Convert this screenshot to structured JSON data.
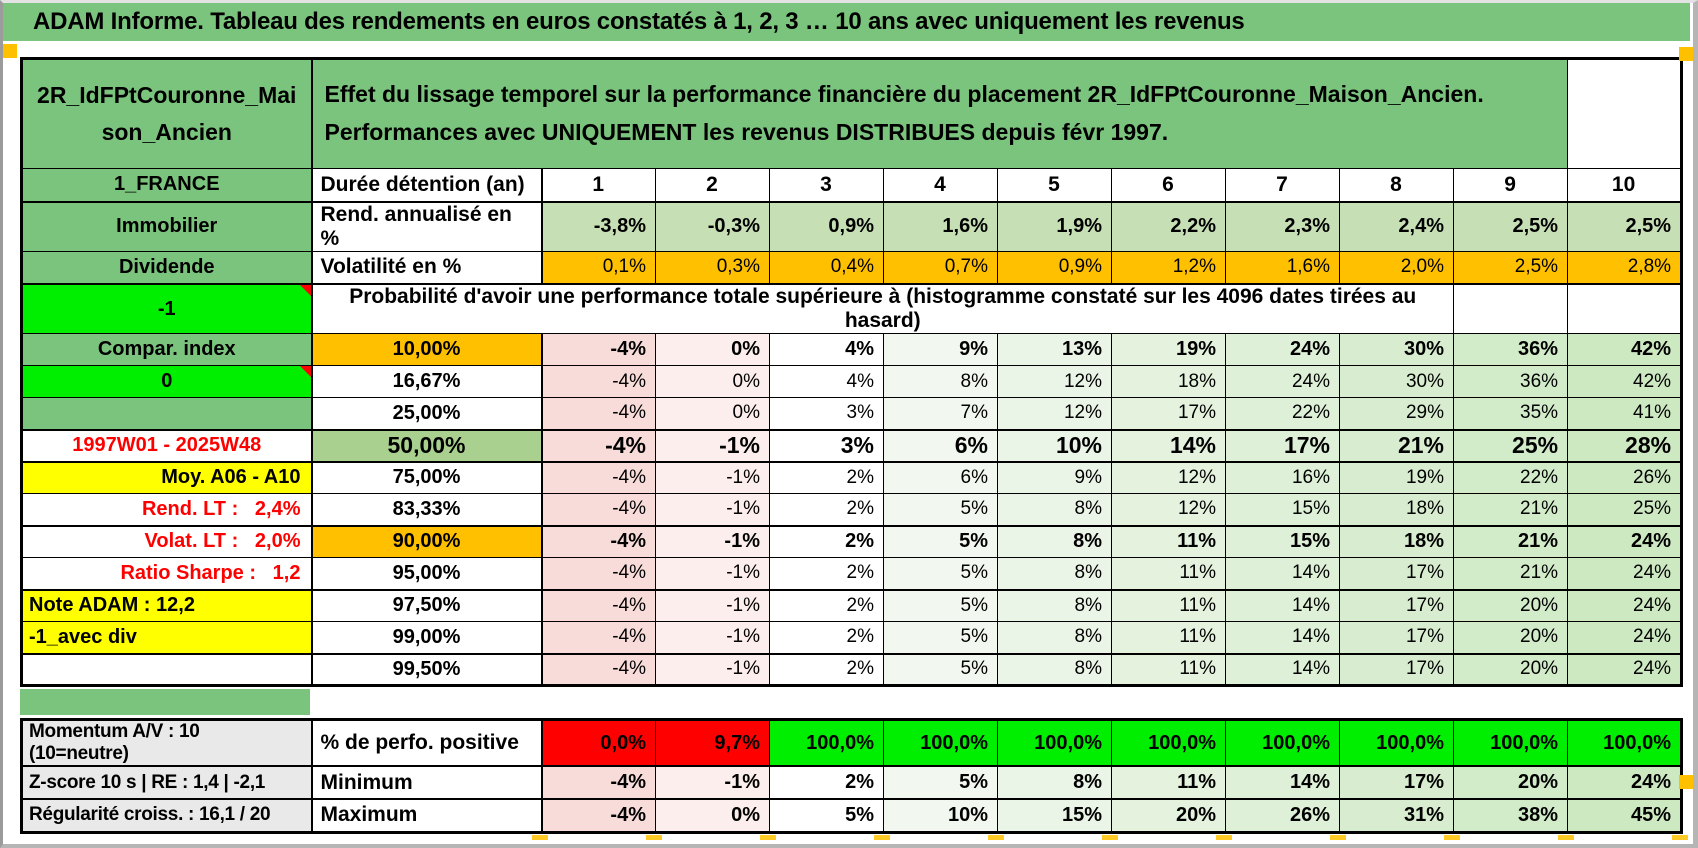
{
  "title": "ADAM Informe. Tableau des rendements en euros constatés à 1, 2, 3 … 10 ans avec uniquement les revenus",
  "colors": {
    "green": "#7BC47D",
    "light_green": "#C6DFB4",
    "mid_green": "#A9D08E",
    "bright_green": "#00EE00",
    "orange": "#FFC000",
    "yellow": "#FFFF00",
    "red": "#FF0000",
    "gray": "#E9E9E9"
  },
  "header": {
    "asset_id": "2R_IdFPtCouronne_Maison_Ancien",
    "description": "Effet du lissage temporel sur la performance financière du placement 2R_IdFPtCouronne_Maison_Ancien. Performances avec UNIQUEMENT les revenus DISTRIBUES depuis févr 1997."
  },
  "duration_row": {
    "label": "1_FRANCE",
    "metric": "Durée détention (an)",
    "values": [
      "1",
      "2",
      "3",
      "4",
      "5",
      "6",
      "7",
      "8",
      "9",
      "10"
    ]
  },
  "return_row": {
    "label": "Immobilier",
    "metric": "Rend. annualisé en %",
    "values": [
      "-3,8%",
      "-0,3%",
      "0,9%",
      "1,6%",
      "1,9%",
      "2,2%",
      "2,3%",
      "2,4%",
      "2,5%",
      "2,5%"
    ]
  },
  "volatility_row": {
    "label": "Dividende",
    "metric": "Volatilité en %",
    "values": [
      "0,1%",
      "0,3%",
      "0,4%",
      "0,7%",
      "0,9%",
      "1,2%",
      "1,6%",
      "2,0%",
      "2,5%",
      "2,8%"
    ]
  },
  "probability_header": {
    "label": "-1",
    "text": "Probabilité d'avoir une performance totale supérieure à (histogramme constaté sur les 4096 dates tirées au hasard)"
  },
  "probability_rows": [
    {
      "label": "Compar. index",
      "label_style": "green",
      "marker": false,
      "threshold": "10,00%",
      "threshold_style": "orange",
      "bold": true,
      "big": false,
      "values": [
        "-4%",
        "0%",
        "4%",
        "9%",
        "13%",
        "19%",
        "24%",
        "30%",
        "36%",
        "42%"
      ]
    },
    {
      "label": "0",
      "label_style": "bright-green",
      "marker": true,
      "threshold": "16,67%",
      "threshold_style": "white",
      "bold": false,
      "big": false,
      "values": [
        "-4%",
        "0%",
        "4%",
        "8%",
        "12%",
        "18%",
        "24%",
        "30%",
        "36%",
        "42%"
      ]
    },
    {
      "label": "",
      "label_style": "green",
      "marker": false,
      "threshold": "25,00%",
      "threshold_style": "white",
      "bold": false,
      "big": false,
      "values": [
        "-4%",
        "0%",
        "3%",
        "7%",
        "12%",
        "17%",
        "22%",
        "29%",
        "35%",
        "41%"
      ]
    },
    {
      "label": "1997W01 - 2025W48",
      "label_style": "red-center",
      "marker": false,
      "threshold": "50,00%",
      "threshold_style": "mid-green",
      "bold": true,
      "big": true,
      "values": [
        "-4%",
        "-1%",
        "3%",
        "6%",
        "10%",
        "14%",
        "17%",
        "21%",
        "25%",
        "28%"
      ]
    },
    {
      "label": "Moy. A06 - A10",
      "label_style": "yellow-right",
      "marker": false,
      "threshold": "75,00%",
      "threshold_style": "white",
      "bold": false,
      "big": false,
      "values": [
        "-4%",
        "-1%",
        "2%",
        "6%",
        "9%",
        "12%",
        "16%",
        "19%",
        "22%",
        "26%"
      ]
    },
    {
      "label": "Rend. LT :   2,4%",
      "label_style": "red-right",
      "marker": false,
      "threshold": "83,33%",
      "threshold_style": "white",
      "bold": false,
      "big": false,
      "values": [
        "-4%",
        "-1%",
        "2%",
        "5%",
        "8%",
        "12%",
        "15%",
        "18%",
        "21%",
        "25%"
      ]
    },
    {
      "label": "Volat. LT :   2,0%",
      "label_style": "red-right",
      "marker": false,
      "threshold": "90,00%",
      "threshold_style": "orange",
      "bold": true,
      "big": false,
      "values": [
        "-4%",
        "-1%",
        "2%",
        "5%",
        "8%",
        "11%",
        "15%",
        "18%",
        "21%",
        "24%"
      ]
    },
    {
      "label": "Ratio Sharpe :   1,2",
      "label_style": "red-right",
      "marker": false,
      "threshold": "95,00%",
      "threshold_style": "white",
      "bold": false,
      "big": false,
      "values": [
        "-4%",
        "-1%",
        "2%",
        "5%",
        "8%",
        "11%",
        "14%",
        "17%",
        "21%",
        "24%"
      ]
    },
    {
      "label": "Note ADAM : 12,2",
      "label_style": "yellow-left",
      "marker": false,
      "threshold": "97,50%",
      "threshold_style": "white",
      "bold": false,
      "big": false,
      "values": [
        "-4%",
        "-1%",
        "2%",
        "5%",
        "8%",
        "11%",
        "14%",
        "17%",
        "20%",
        "24%"
      ]
    },
    {
      "label": "-1_avec div",
      "label_style": "yellow-left",
      "marker": false,
      "threshold": "99,00%",
      "threshold_style": "white",
      "bold": false,
      "big": false,
      "values": [
        "-4%",
        "-1%",
        "2%",
        "5%",
        "8%",
        "11%",
        "14%",
        "17%",
        "20%",
        "24%"
      ]
    },
    {
      "label": "",
      "label_style": "white",
      "marker": false,
      "threshold": "99,50%",
      "threshold_style": "white",
      "bold": false,
      "big": false,
      "values": [
        "-4%",
        "-1%",
        "2%",
        "5%",
        "8%",
        "11%",
        "14%",
        "17%",
        "20%",
        "24%"
      ]
    }
  ],
  "stats_rows": [
    {
      "label": "Momentum A/V : 10 (10=neutre)",
      "metric": "% de perfo. positive",
      "values": [
        "0,0%",
        "9,7%",
        "100,0%",
        "100,0%",
        "100,0%",
        "100,0%",
        "100,0%",
        "100,0%",
        "100,0%",
        "100,0%"
      ],
      "value_styles": [
        "red",
        "red",
        "green",
        "green",
        "green",
        "green",
        "green",
        "green",
        "green",
        "green"
      ]
    },
    {
      "label": "Z-score 10 s | RE : 1,4 | -2,1",
      "metric": "Minimum",
      "values": [
        "-4%",
        "-1%",
        "2%",
        "5%",
        "8%",
        "11%",
        "14%",
        "17%",
        "20%",
        "24%"
      ],
      "value_styles": null
    },
    {
      "label": "Régularité croiss. : 16,1 / 20",
      "metric": "Maximum",
      "values": [
        "-4%",
        "0%",
        "5%",
        "10%",
        "15%",
        "20%",
        "26%",
        "31%",
        "38%",
        "45%"
      ],
      "value_styles": null
    }
  ]
}
